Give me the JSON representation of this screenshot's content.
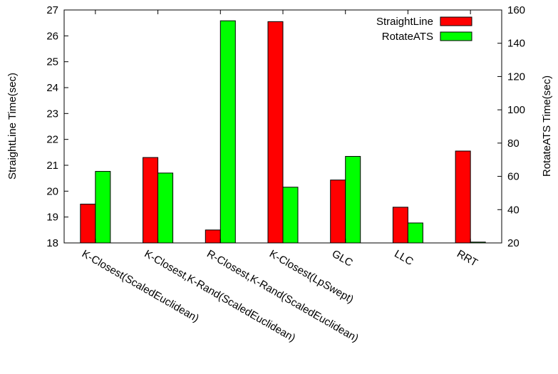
{
  "chart_data": {
    "type": "bar",
    "title": "",
    "categories": [
      "K-Closest(ScaledEuclidean)",
      "K-Closest,K-Rand(ScaledEuclidean)",
      "R-Closest,K-Rand(ScaledEuclidean)",
      "K-Closest(LpSwept)",
      "GLC",
      "LLC",
      "RRT"
    ],
    "series": [
      {
        "name": "StraightLine",
        "axis": "left",
        "color": "#ff0000",
        "values": [
          19.5,
          21.3,
          18.5,
          26.55,
          20.43,
          19.38,
          21.55
        ]
      },
      {
        "name": "RotateATS",
        "axis": "right",
        "color": "#00ff00",
        "values": [
          63,
          62,
          153.5,
          53.5,
          72,
          32,
          20.5
        ]
      }
    ],
    "ylabel": "StraightLine Time(sec)",
    "ylabel2": "RotateATS Time(sec)",
    "xlabel": "",
    "ylim": [
      18,
      27
    ],
    "ylim2": [
      20,
      160
    ],
    "yticks": [
      18,
      19,
      20,
      21,
      22,
      23,
      24,
      25,
      26,
      27
    ],
    "yticks2": [
      20,
      40,
      60,
      80,
      100,
      120,
      140,
      160
    ],
    "legend_position": "top-right",
    "grid": false
  }
}
